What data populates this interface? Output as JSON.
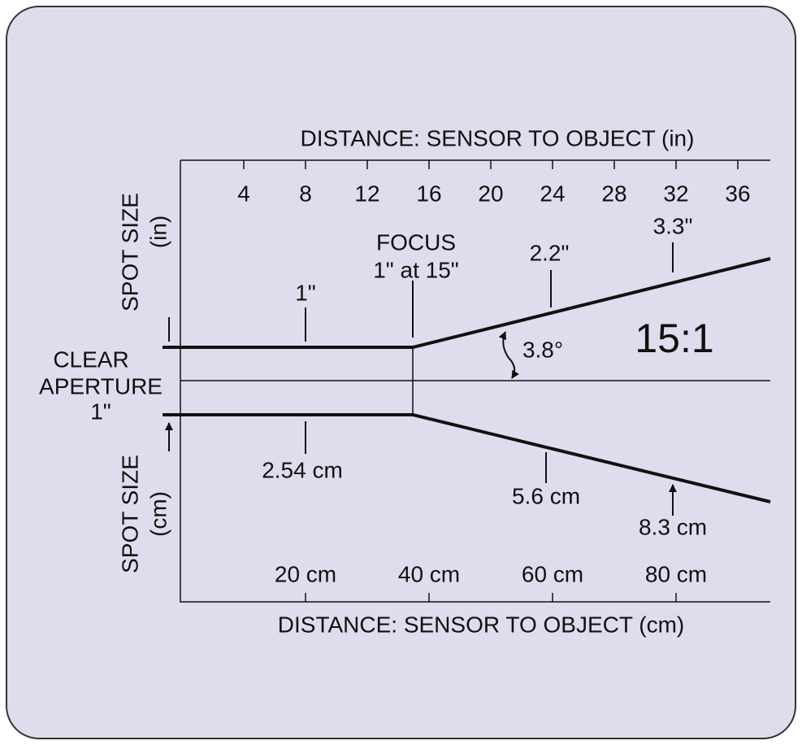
{
  "top_axis": {
    "title": "DISTANCE: SENSOR TO OBJECT (in)",
    "ticks": [
      "4",
      "8",
      "12",
      "16",
      "20",
      "24",
      "28",
      "32",
      "36"
    ]
  },
  "bottom_axis": {
    "title": "DISTANCE: SENSOR TO OBJECT (cm)",
    "ticks": [
      "20 cm",
      "40 cm",
      "60 cm",
      "80 cm"
    ]
  },
  "left_labels": {
    "top_title": "SPOT SIZE",
    "top_unit": "(in)",
    "aperture": [
      "CLEAR",
      "APERTURE",
      "1\""
    ],
    "bottom_title": "SPOT SIZE",
    "bottom_unit": "(cm)"
  },
  "annotations": {
    "focus": [
      "FOCUS",
      "1\" at 15\""
    ],
    "spot_in": [
      "1\"",
      "2.2\"",
      "3.3\""
    ],
    "spot_cm": [
      "2.54 cm",
      "5.6 cm",
      "8.3 cm"
    ],
    "angle": "3.8°",
    "ratio": "15:1"
  }
}
